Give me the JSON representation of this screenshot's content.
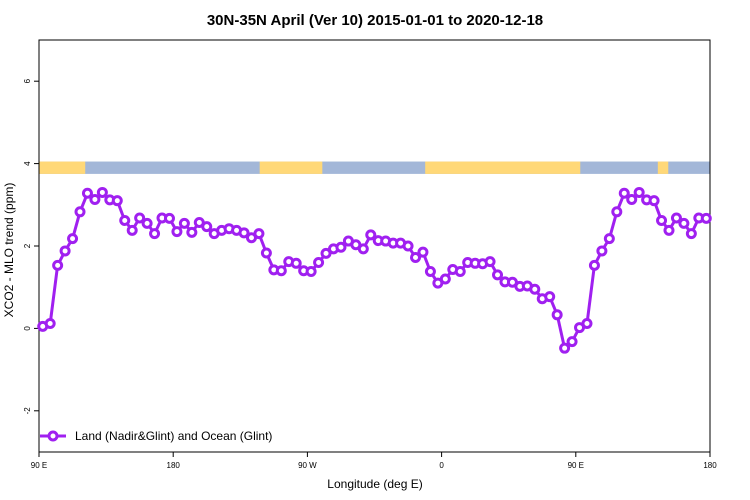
{
  "chart_data": {
    "type": "line",
    "title": "30N-35N April (Ver 10)   2015-01-01 to 2020-12-18",
    "xlabel": "Longitude (deg E)",
    "ylabel": "XCO2 - MLO trend (ppm)",
    "xlim": [
      90,
      540
    ],
    "ylim": [
      -3,
      7
    ],
    "x_ticks": [
      {
        "value": 90,
        "label": "90 E"
      },
      {
        "value": 180,
        "label": "180"
      },
      {
        "value": 270,
        "label": "90 W"
      },
      {
        "value": 360,
        "label": "0"
      },
      {
        "value": 450,
        "label": "90 E"
      },
      {
        "value": 540,
        "label": "180"
      }
    ],
    "y_ticks": [
      {
        "value": -2,
        "label": "-2"
      },
      {
        "value": 0,
        "label": "0"
      },
      {
        "value": 2,
        "label": "2"
      },
      {
        "value": 4,
        "label": "4"
      },
      {
        "value": 6,
        "label": "6"
      }
    ],
    "grid": false,
    "legend_position": "bottom-left",
    "land_ocean_strip": {
      "y_range": [
        3.75,
        4.05
      ],
      "land_color": "#FFD878",
      "ocean_color": "#A3B7D8",
      "land_segments": [
        [
          90,
          121
        ],
        [
          238,
          280
        ],
        [
          349,
          453
        ],
        [
          505,
          512
        ]
      ]
    },
    "series": [
      {
        "name": "Land (Nadir&Glint) and Ocean (Glint)",
        "color": "#A020F0",
        "x": [
          92.5,
          97.5,
          102.5,
          107.5,
          112.5,
          117.5,
          122.5,
          127.5,
          132.5,
          137.5,
          142.5,
          147.5,
          152.5,
          157.5,
          162.5,
          167.5,
          172.5,
          177.5,
          182.5,
          187.5,
          192.5,
          197.5,
          202.5,
          207.5,
          212.5,
          217.5,
          222.5,
          227.5,
          232.5,
          237.5,
          242.5,
          247.5,
          252.5,
          257.5,
          262.5,
          267.5,
          272.5,
          277.5,
          282.5,
          287.5,
          292.5,
          297.5,
          302.5,
          307.5,
          312.5,
          317.5,
          322.5,
          327.5,
          332.5,
          337.5,
          342.5,
          347.5,
          352.5,
          357.5,
          362.5,
          367.5,
          372.5,
          377.5,
          382.5,
          387.5,
          392.5,
          397.5,
          402.5,
          407.5,
          412.5,
          417.5,
          422.5,
          427.5,
          432.5,
          437.5,
          442.5,
          447.5,
          452.5,
          457.5,
          462.5,
          467.5,
          472.5,
          477.5,
          482.5,
          487.5,
          492.5,
          497.5,
          502.5,
          507.5,
          512.5,
          517.5,
          522.5,
          527.5,
          532.5,
          537.5
        ],
        "values": [
          0.05,
          0.12,
          1.53,
          1.88,
          2.18,
          2.83,
          3.28,
          3.13,
          3.3,
          3.12,
          3.1,
          2.62,
          2.38,
          2.68,
          2.55,
          2.3,
          2.68,
          2.67,
          2.35,
          2.55,
          2.33,
          2.57,
          2.47,
          2.3,
          2.38,
          2.42,
          2.38,
          2.32,
          2.2,
          2.3,
          1.83,
          1.42,
          1.4,
          1.62,
          1.58,
          1.4,
          1.38,
          1.6,
          1.82,
          1.93,
          1.97,
          2.12,
          2.03,
          1.93,
          2.27,
          2.13,
          2.12,
          2.07,
          2.07,
          2.0,
          1.72,
          1.85,
          1.38,
          1.1,
          1.2,
          1.43,
          1.38,
          1.6,
          1.58,
          1.57,
          1.62,
          1.3,
          1.13,
          1.12,
          1.02,
          1.03,
          0.95,
          0.72,
          0.77,
          0.33,
          -0.48,
          -0.32,
          0.02,
          0.12,
          1.53,
          1.88,
          2.18,
          2.83,
          3.28,
          3.13,
          3.3,
          3.12,
          3.1,
          2.62,
          2.38,
          2.68,
          2.55,
          2.3,
          2.68,
          2.67
        ]
      }
    ]
  }
}
